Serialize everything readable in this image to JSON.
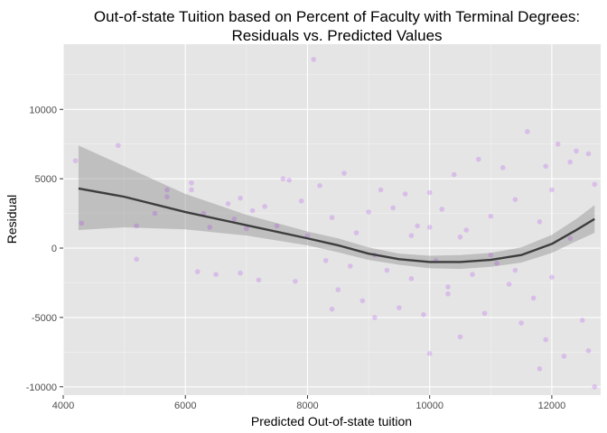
{
  "chart_data": {
    "type": "scatter",
    "title": [
      "Out-of-state Tuition based on Percent of Faculty with Terminal Degrees:",
      "Residuals vs. Predicted Values"
    ],
    "xlabel": "Predicted Out-of-state tuition",
    "ylabel": "Residual",
    "xlim": [
      4000,
      12800
    ],
    "ylim": [
      -10600,
      14700
    ],
    "x_ticks": [
      4000,
      6000,
      8000,
      10000,
      12000
    ],
    "x_tick_labels": [
      "4000",
      "6000",
      "8000",
      "10000",
      "12000"
    ],
    "y_ticks": [
      -10000,
      -5000,
      0,
      5000,
      10000
    ],
    "y_tick_labels": [
      "-10000",
      "-5000",
      "0",
      "5000",
      "10000"
    ],
    "grid": true,
    "point_color": "#a020f0",
    "smooth_color": "#3d3d3d",
    "band_color": "#999999",
    "panel_background": "#e5e5e5",
    "points": [
      [
        4200,
        6300
      ],
      [
        4300,
        1800
      ],
      [
        4900,
        7400
      ],
      [
        5200,
        1600
      ],
      [
        5200,
        -800
      ],
      [
        5500,
        2500
      ],
      [
        5700,
        3700
      ],
      [
        5700,
        4200
      ],
      [
        6100,
        4700
      ],
      [
        6100,
        4200
      ],
      [
        6200,
        -1700
      ],
      [
        6300,
        2500
      ],
      [
        6400,
        1500
      ],
      [
        6500,
        -1900
      ],
      [
        6700,
        3200
      ],
      [
        6800,
        2100
      ],
      [
        6900,
        3600
      ],
      [
        6900,
        -1800
      ],
      [
        7000,
        1400
      ],
      [
        7100,
        2700
      ],
      [
        7200,
        -2300
      ],
      [
        7300,
        3000
      ],
      [
        7500,
        1600
      ],
      [
        7600,
        5000
      ],
      [
        7700,
        4900
      ],
      [
        7800,
        -2400
      ],
      [
        7900,
        3400
      ],
      [
        8000,
        900
      ],
      [
        8100,
        13600
      ],
      [
        8200,
        4500
      ],
      [
        8300,
        -900
      ],
      [
        8400,
        2200
      ],
      [
        8500,
        -3000
      ],
      [
        8600,
        5400
      ],
      [
        8700,
        -1300
      ],
      [
        8800,
        1100
      ],
      [
        8900,
        -3800
      ],
      [
        9000,
        2600
      ],
      [
        9100,
        -500
      ],
      [
        9200,
        4200
      ],
      [
        9300,
        -1600
      ],
      [
        9400,
        2900
      ],
      [
        9500,
        -4300
      ],
      [
        9600,
        3900
      ],
      [
        9700,
        -2200
      ],
      [
        9800,
        1600
      ],
      [
        9900,
        -4800
      ],
      [
        10000,
        4000
      ],
      [
        10000,
        -7600
      ],
      [
        10100,
        -900
      ],
      [
        10200,
        2800
      ],
      [
        10300,
        -3300
      ],
      [
        10400,
        5300
      ],
      [
        10500,
        -6400
      ],
      [
        10600,
        1300
      ],
      [
        10700,
        -1900
      ],
      [
        10800,
        6400
      ],
      [
        10900,
        -4700
      ],
      [
        11000,
        2300
      ],
      [
        11100,
        -1100
      ],
      [
        11200,
        5800
      ],
      [
        11300,
        -2600
      ],
      [
        11400,
        3500
      ],
      [
        11500,
        -5400
      ],
      [
        11600,
        8400
      ],
      [
        11700,
        -3600
      ],
      [
        11800,
        1900
      ],
      [
        11900,
        -6600
      ],
      [
        12000,
        4200
      ],
      [
        12100,
        7500
      ],
      [
        12200,
        -7800
      ],
      [
        12300,
        700
      ],
      [
        12400,
        7000
      ],
      [
        12500,
        -5200
      ],
      [
        12600,
        6800
      ],
      [
        12700,
        -10000
      ],
      [
        12700,
        4600
      ],
      [
        12600,
        -7400
      ],
      [
        12300,
        6200
      ],
      [
        11800,
        -8700
      ],
      [
        11900,
        5900
      ],
      [
        12000,
        -2100
      ],
      [
        10300,
        -2800
      ],
      [
        9100,
        -5000
      ],
      [
        8400,
        -4400
      ],
      [
        10000,
        1500
      ],
      [
        10500,
        800
      ],
      [
        11000,
        -500
      ],
      [
        9700,
        900
      ],
      [
        11400,
        -1600
      ]
    ],
    "smooth": [
      {
        "x": 4250,
        "y": 4300,
        "lo": 1300,
        "hi": 7400
      },
      {
        "x": 5000,
        "y": 3700,
        "lo": 1500,
        "hi": 5900
      },
      {
        "x": 6000,
        "y": 2600,
        "lo": 1350,
        "hi": 3900
      },
      {
        "x": 7000,
        "y": 1650,
        "lo": 900,
        "hi": 2400
      },
      {
        "x": 8000,
        "y": 700,
        "lo": 200,
        "hi": 1200
      },
      {
        "x": 8500,
        "y": 200,
        "lo": -300,
        "hi": 700
      },
      {
        "x": 9000,
        "y": -400,
        "lo": -850,
        "hi": 50
      },
      {
        "x": 9500,
        "y": -800,
        "lo": -1200,
        "hi": -400
      },
      {
        "x": 10000,
        "y": -1000,
        "lo": -1450,
        "hi": -550
      },
      {
        "x": 10500,
        "y": -1000,
        "lo": -1500,
        "hi": -500
      },
      {
        "x": 11000,
        "y": -850,
        "lo": -1350,
        "hi": -350
      },
      {
        "x": 11500,
        "y": -500,
        "lo": -1050,
        "hi": 50
      },
      {
        "x": 12000,
        "y": 300,
        "lo": -350,
        "hi": 950
      },
      {
        "x": 12400,
        "y": 1300,
        "lo": 500,
        "hi": 2100
      },
      {
        "x": 12700,
        "y": 2100,
        "lo": 1100,
        "hi": 3100
      }
    ]
  }
}
